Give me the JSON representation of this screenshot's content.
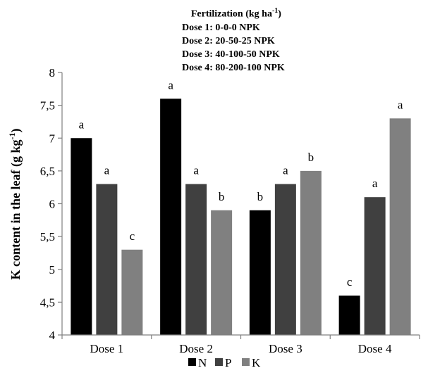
{
  "chart_data": {
    "type": "bar",
    "categories": [
      "Dose 1",
      "Dose 2",
      "Dose 3",
      "Dose 4"
    ],
    "series": [
      {
        "name": "N",
        "values": [
          7.0,
          7.6,
          5.9,
          4.6
        ],
        "labels": [
          "a",
          "a",
          "b",
          "c"
        ],
        "color": "#000000"
      },
      {
        "name": "P",
        "values": [
          6.3,
          6.3,
          6.3,
          6.1
        ],
        "labels": [
          "a",
          "a",
          "a",
          "a"
        ],
        "color": "#404040"
      },
      {
        "name": "K",
        "values": [
          5.3,
          5.9,
          6.5,
          7.3
        ],
        "labels": [
          "c",
          "b",
          "b",
          "a"
        ],
        "color": "#808080"
      }
    ],
    "ylim": [
      4,
      8
    ],
    "yticks": [
      "4",
      "4,5",
      "5",
      "5,5",
      "6",
      "6,5",
      "7",
      "7,5",
      "8"
    ],
    "ytick_values": [
      4,
      4.5,
      5,
      5.5,
      6,
      6.5,
      7,
      7.5,
      8
    ],
    "ylabel_text": "K content in the leaf (g kg",
    "ylabel_sup": "-1",
    "ylabel_close": ")",
    "xlabel": "",
    "grid": false,
    "legend_position": "bottom",
    "annotation": {
      "title_text": "Fertilization (kg ha",
      "title_sup": "-1",
      "title_close": ")",
      "lines": [
        "Dose 1: 0-0-0 NPK",
        "Dose 2: 20-50-25 NPK",
        "Dose 3: 40-100-50 NPK",
        "Dose 4: 80-200-100 NPK"
      ]
    }
  }
}
